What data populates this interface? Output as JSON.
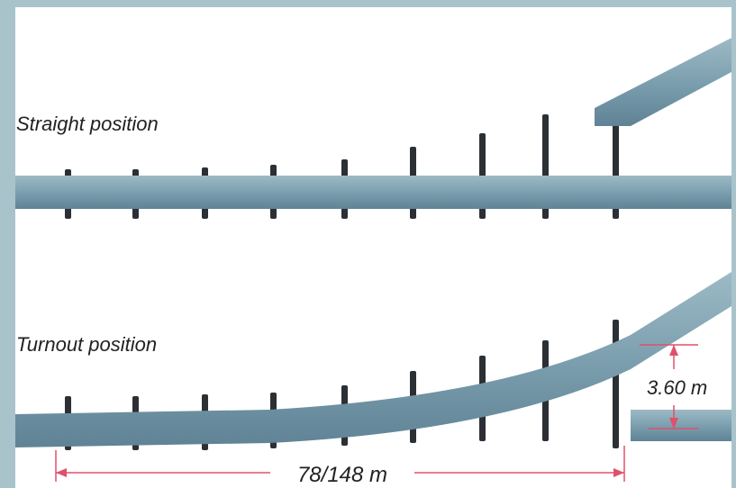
{
  "labels": {
    "straight": "Straight position",
    "turnout": "Turnout position"
  },
  "dimensions": {
    "offset": "3.60 m",
    "length": "78/148 m"
  }
}
